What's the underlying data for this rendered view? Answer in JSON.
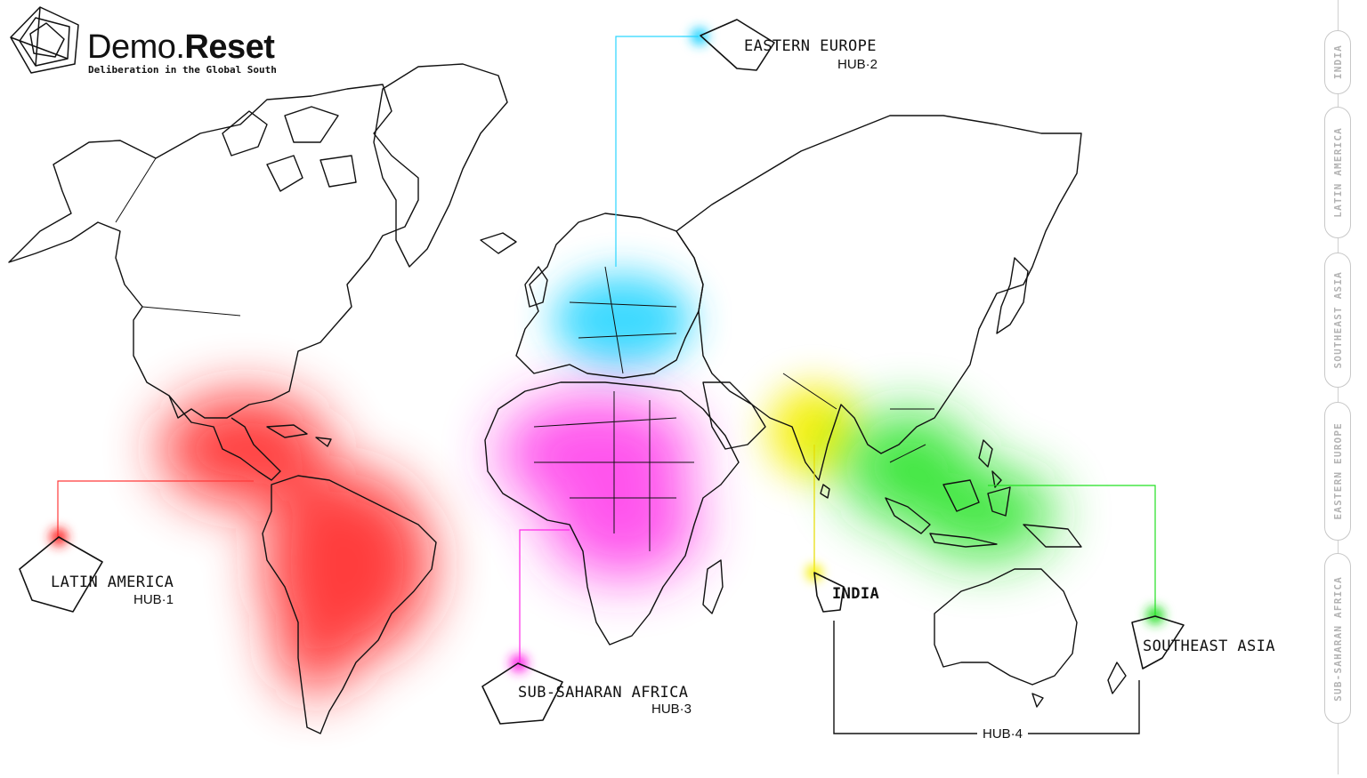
{
  "brand": {
    "name_light": "Demo.",
    "name_bold": "Reset",
    "tagline": "Deliberation in the Global South"
  },
  "hubs": [
    {
      "id": "latin-america",
      "label": "LATIN AMERICA",
      "hub": "HUB·1",
      "color": "#ff2020"
    },
    {
      "id": "eastern-europe",
      "label": "EASTERN EUROPE",
      "hub": "HUB·2",
      "color": "#28d4ff"
    },
    {
      "id": "sub-saharan-africa",
      "label": "SUB-SAHARAN AFRICA",
      "hub": "HUB·3",
      "color": "#ff20e6"
    },
    {
      "id": "india",
      "label": "INDIA",
      "color": "#f7f000"
    },
    {
      "id": "southeast-asia",
      "label": "SOUTHEAST ASIA",
      "color": "#22e022"
    }
  ],
  "hub4_label": "HUB·4",
  "side_nav": [
    "INDIA",
    "LATIN AMERICA",
    "SOUTHEAST ASIA",
    "EASTERN EUROPE",
    "SUB-SAHARAN AFRICA"
  ]
}
